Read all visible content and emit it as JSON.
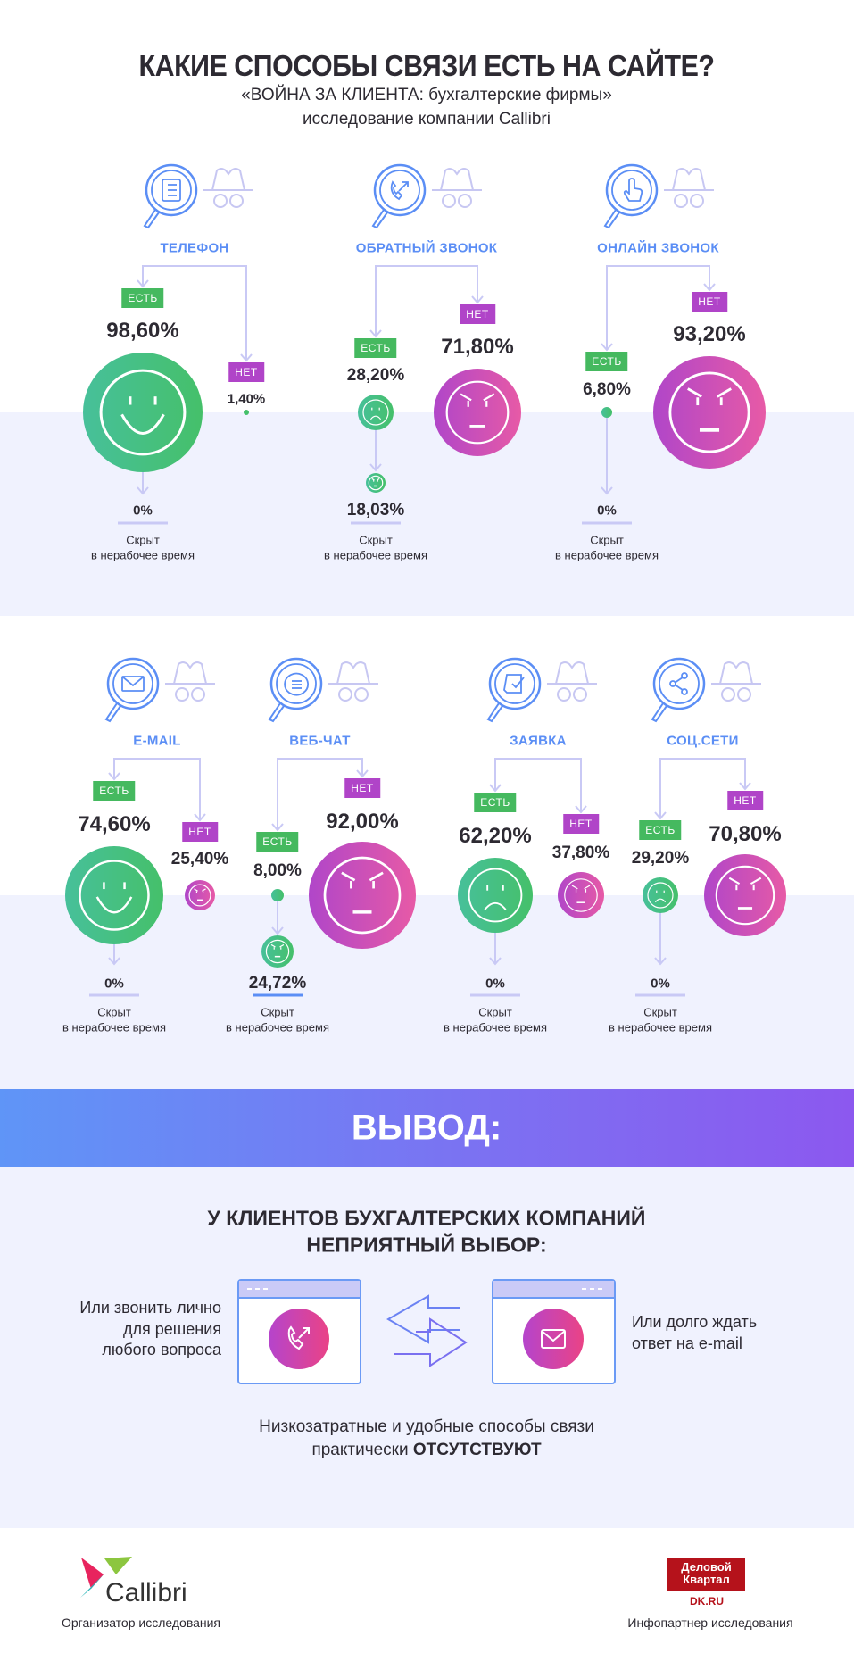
{
  "header": {
    "title": "КАКИЕ СПОСОБЫ СВЯЗИ ЕСТЬ НА САЙТЕ?",
    "subtitle_line1": "«ВОЙНА ЗА КЛИЕНТА: бухгалтерские фирмы»",
    "subtitle_line2": "исследование компании Callibri"
  },
  "colors": {
    "accent_blue": "#5b8ef5",
    "yes_green": "#45b95f",
    "no_purple": "#b044c8",
    "band": "#f0f2fe"
  },
  "channels": [
    {
      "title": "ТЕЛЕФОН",
      "icon": "phone-book-icon",
      "yes": {
        "label": "ЕСТЬ",
        "value": "98,60%",
        "face": "smile"
      },
      "no": {
        "label": "НЕТ",
        "value": "1,40%",
        "face": "dot"
      },
      "hidden": {
        "value": "0%",
        "caption1": "Скрыт",
        "caption2": "в нерабочее время"
      }
    },
    {
      "title": "ОБРАТНЫЙ ЗВОНОК",
      "icon": "callback-icon",
      "yes": {
        "label": "ЕСТЬ",
        "value": "28,20%",
        "face": "frown"
      },
      "no": {
        "label": "НЕТ",
        "value": "71,80%",
        "face": "angry"
      },
      "hidden": {
        "value": "18,03%",
        "caption1": "Скрыт",
        "caption2": "в нерабочее время",
        "face": "angry"
      }
    },
    {
      "title": "ОНЛАЙН ЗВОНОК",
      "icon": "click-icon",
      "yes": {
        "label": "ЕСТЬ",
        "value": "6,80%",
        "face": "dot"
      },
      "no": {
        "label": "НЕТ",
        "value": "93,20%",
        "face": "angry"
      },
      "hidden": {
        "value": "0%",
        "caption1": "Скрыт",
        "caption2": "в нерабочее время"
      }
    },
    {
      "title": "E-MAIL",
      "icon": "envelope-icon",
      "yes": {
        "label": "ЕСТЬ",
        "value": "74,60%",
        "face": "smile"
      },
      "no": {
        "label": "НЕТ",
        "value": "25,40%",
        "face": "angry"
      },
      "hidden": {
        "value": "0%",
        "caption1": "Скрыт",
        "caption2": "в нерабочее время"
      }
    },
    {
      "title": "ВЕБ-ЧАТ",
      "icon": "chat-icon",
      "yes": {
        "label": "ЕСТЬ",
        "value": "8,00%",
        "face": "dot"
      },
      "no": {
        "label": "НЕТ",
        "value": "92,00%",
        "face": "angry"
      },
      "hidden": {
        "value": "24,72%",
        "caption1": "Скрыт",
        "caption2": "в нерабочее время",
        "face": "angry"
      }
    },
    {
      "title": "ЗАЯВКА",
      "icon": "form-icon",
      "yes": {
        "label": "ЕСТЬ",
        "value": "62,20%",
        "face": "frown"
      },
      "no": {
        "label": "НЕТ",
        "value": "37,80%",
        "face": "angry"
      },
      "hidden": {
        "value": "0%",
        "caption1": "Скрыт",
        "caption2": "в нерабочее время"
      }
    },
    {
      "title": "СОЦ.СЕТИ",
      "icon": "share-icon",
      "yes": {
        "label": "ЕСТЬ",
        "value": "29,20%",
        "face": "frown"
      },
      "no": {
        "label": "НЕТ",
        "value": "70,80%",
        "face": "angry"
      },
      "hidden": {
        "value": "0%",
        "caption1": "Скрыт",
        "caption2": "в нерабочее время"
      }
    }
  ],
  "conclusion": {
    "banner": "ВЫВОД:",
    "heading_line1": "У КЛИЕНТОВ БУХГАЛТЕРСКИХ КОМПАНИЙ",
    "heading_line2": "НЕПРИЯТНЫЙ ВЫБОР:",
    "left_line1": "Или звонить лично",
    "left_line2": "для решения",
    "left_line3": "любого вопроса",
    "right_line1": "Или долго ждать",
    "right_line2": "ответ  на e-mail",
    "bottom_line1": "Низкозатратные и удобные способы связи",
    "bottom_line2_prefix": "практически ",
    "bottom_line2_bold": "ОТСУТСТВУЮТ"
  },
  "footer": {
    "organizer_logo": "Callibri",
    "organizer_caption": "Организатор исследования",
    "partner_logo_line1": "Деловой",
    "partner_logo_line2": "Квартал",
    "partner_site": "DK.RU",
    "partner_caption": "Инфопартнер исследования"
  }
}
